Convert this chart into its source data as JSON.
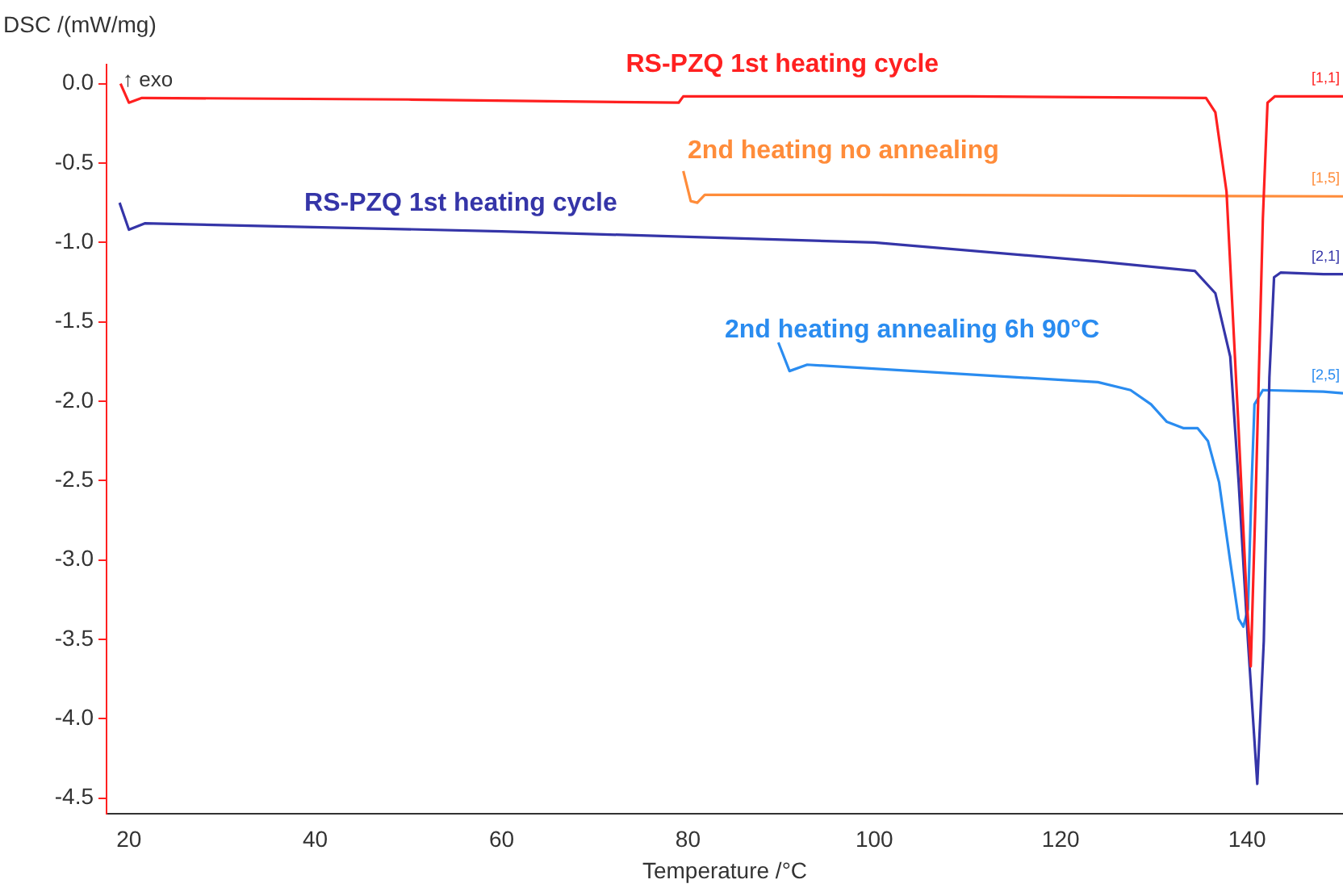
{
  "chart_data": {
    "type": "line",
    "xlabel": "Temperature /°C",
    "ylabel": "DSC /(mW/mg)",
    "xlim": [
      17.6,
      150.3
    ],
    "ylim": [
      -4.6,
      0.12
    ],
    "xticks": [
      20,
      40,
      60,
      80,
      100,
      120,
      140
    ],
    "yticks": [
      {
        "value": 0,
        "label": "0.0"
      },
      {
        "value": -0.5,
        "label": "-0.5"
      },
      {
        "value": -1,
        "label": "-1.0"
      },
      {
        "value": -1.5,
        "label": "-1.5"
      },
      {
        "value": -2,
        "label": "-2.0"
      },
      {
        "value": -2.5,
        "label": "-2.5"
      },
      {
        "value": -3,
        "label": "-3.0"
      },
      {
        "value": -3.5,
        "label": "-3.5"
      },
      {
        "value": -4,
        "label": "-4.0"
      },
      {
        "value": -4.5,
        "label": "-4.5"
      }
    ],
    "grid": false,
    "legend": false,
    "marker": "none",
    "line_style": "solid",
    "series": [
      {
        "name": "RS-PZQ 1st heating cycle",
        "color": "#ff2020",
        "x": [
          19.1,
          20,
          21.4,
          50,
          79,
          79.5,
          110,
          135.6,
          136.6,
          137.8,
          139.1,
          139.9,
          140.4,
          140.97,
          141.7,
          142.2,
          143,
          150.3
        ],
        "values": [
          0,
          -0.12,
          -0.09,
          -0.1,
          -0.12,
          -0.08,
          -0.08,
          -0.09,
          -0.18,
          -0.68,
          -2.18,
          -3.17,
          -3.67,
          -2.51,
          -0.85,
          -0.12,
          -0.08,
          -0.08
        ]
      },
      {
        "name": "2nd heating no annealing",
        "color": "#ff8c3a",
        "x": [
          79.5,
          80.3,
          81,
          81.8,
          100,
          150.3
        ],
        "values": [
          -0.55,
          -0.74,
          -0.75,
          -0.7,
          -0.7,
          -0.71
        ]
      },
      {
        "name": "RS-PZQ 1st heating cycle",
        "color": "#3535a8",
        "x": [
          19,
          20,
          21.7,
          60,
          100,
          124,
          134.4,
          136.6,
          138.2,
          139.1,
          140.1,
          141.1,
          141.8,
          142.4,
          142.9,
          143.6,
          148.2,
          150.3
        ],
        "values": [
          -0.75,
          -0.92,
          -0.88,
          -0.93,
          -1.0,
          -1.12,
          -1.18,
          -1.32,
          -1.72,
          -2.51,
          -3.51,
          -4.41,
          -3.51,
          -1.85,
          -1.22,
          -1.19,
          -1.2,
          -1.2
        ]
      },
      {
        "name": "2nd heating annealing 6h 90°C",
        "color": "#2a8cf0",
        "x": [
          89.7,
          90.9,
          92.8,
          124,
          127.5,
          129.7,
          131.4,
          133.2,
          134.7,
          135.8,
          137,
          138.2,
          139.1,
          139.6,
          140.1,
          140.5,
          140.8,
          141.7,
          148.2,
          150.3
        ],
        "values": [
          -1.63,
          -1.81,
          -1.77,
          -1.88,
          -1.93,
          -2.02,
          -2.13,
          -2.17,
          -2.17,
          -2.25,
          -2.51,
          -3.01,
          -3.37,
          -3.42,
          -3.31,
          -2.51,
          -2.02,
          -1.93,
          -1.94,
          -1.95
        ]
      }
    ],
    "annotations": [
      "↑ exo",
      "[1,1]",
      "[1,5]",
      "[2,1]",
      "[2,5]"
    ]
  }
}
